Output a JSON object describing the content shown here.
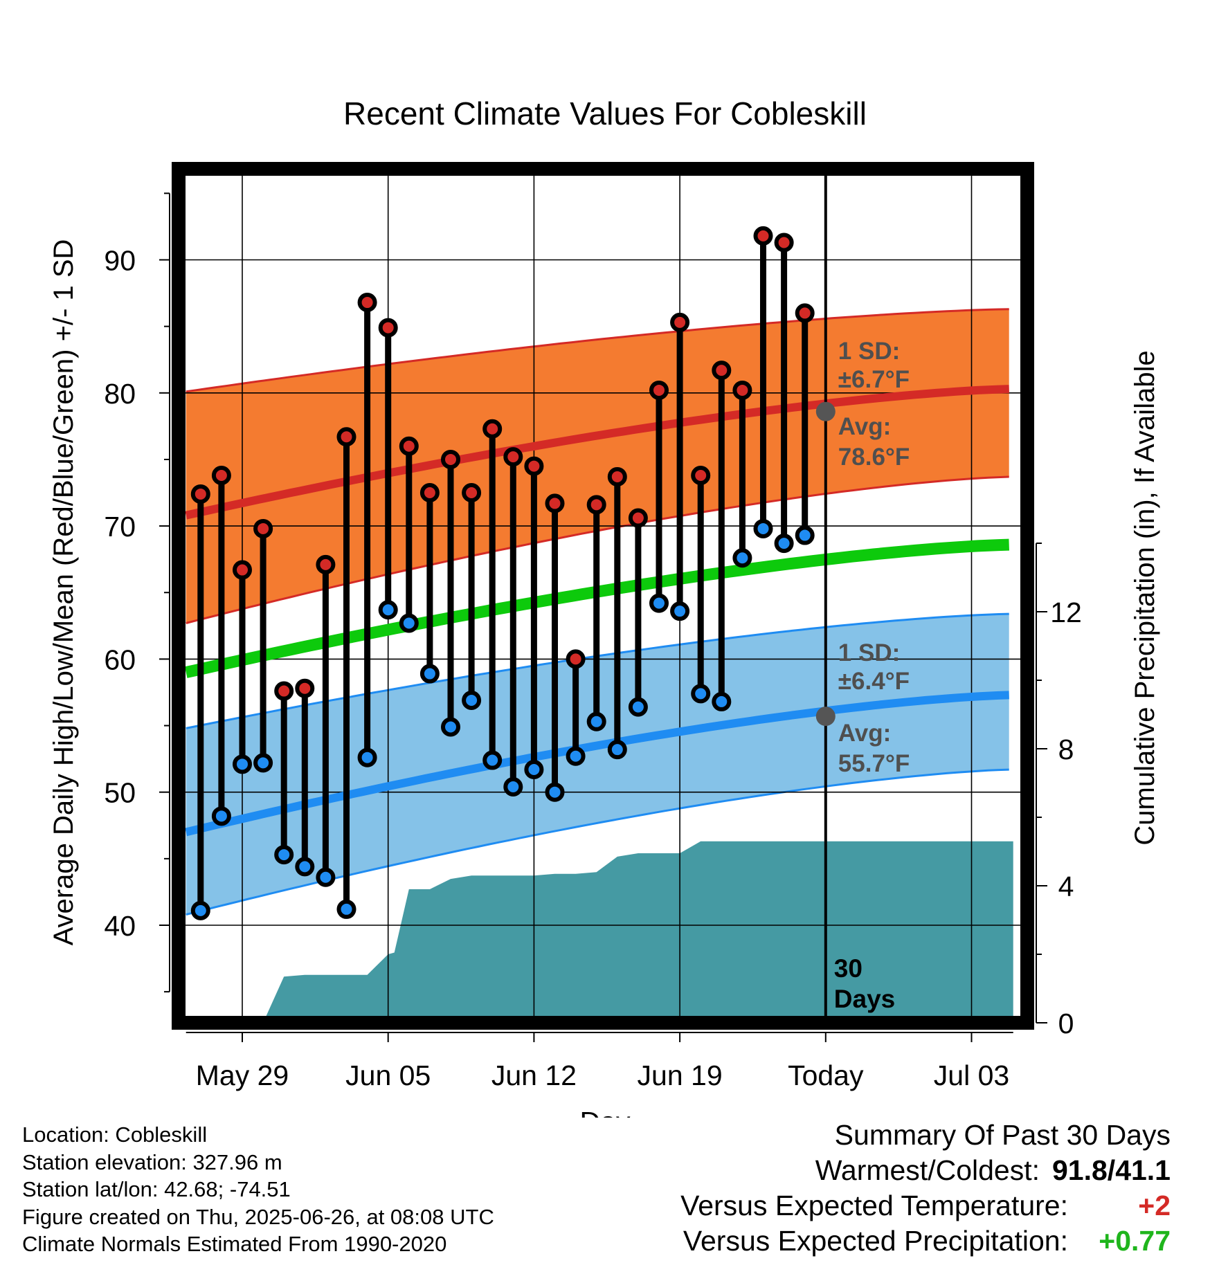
{
  "chart_data": {
    "type": "line",
    "title": "Recent Climate Values For Cobleskill",
    "xlabel": "Day",
    "ylabel_left": "Average Daily High/Low/Mean (Red/Blue/Green) +/- 1 SD",
    "ylabel_right": "Cumulative Precipitation (in), If Available",
    "x_ticks": [
      {
        "day": 0,
        "label": "May 29"
      },
      {
        "day": 7,
        "label": "Jun 05"
      },
      {
        "day": 14,
        "label": "Jun 12"
      },
      {
        "day": 21,
        "label": "Jun 19"
      },
      {
        "day": 28,
        "label": "Today"
      },
      {
        "day": 35,
        "label": "Jul 03"
      }
    ],
    "xlim": [
      -3.3,
      37.3
    ],
    "ylim": [
      33.7,
      97
    ],
    "y_ticks": [
      40,
      50,
      60,
      70,
      80,
      90
    ],
    "y2lim": [
      -0.25,
      0
    ],
    "y2_ticks": [
      0,
      4,
      8,
      12
    ],
    "grid": true,
    "today_day": 28,
    "observed_days": [
      -2,
      -1,
      0,
      1,
      2,
      3,
      4,
      5,
      6,
      7,
      8,
      9,
      10,
      11,
      12,
      13,
      14,
      15,
      16,
      17,
      18,
      19,
      20,
      21,
      22,
      23,
      24,
      25,
      26,
      27
    ],
    "observed_high": [
      72.4,
      73.8,
      66.7,
      69.8,
      57.6,
      57.8,
      67.1,
      76.7,
      86.8,
      84.9,
      76.0,
      72.5,
      75.0,
      72.5,
      77.3,
      75.2,
      74.5,
      71.7,
      60.0,
      71.6,
      73.7,
      70.6,
      80.2,
      85.3,
      73.8,
      81.7,
      80.2,
      91.8,
      91.3,
      86.0
    ],
    "observed_low": [
      41.1,
      48.2,
      52.1,
      52.2,
      45.3,
      44.4,
      43.6,
      41.2,
      52.6,
      63.7,
      62.7,
      58.9,
      54.9,
      56.9,
      52.4,
      50.4,
      51.7,
      50.0,
      52.7,
      55.3,
      53.2,
      56.4,
      64.2,
      63.6,
      57.4,
      56.8,
      67.6,
      69.8,
      68.7,
      69.3
    ],
    "normal_days": [
      -2.7,
      37
    ],
    "normal_high": [
      70.8,
      80.3
    ],
    "normal_high_sd_upper": [
      80.1,
      86.3
    ],
    "normal_high_sd_lower": [
      62.7,
      73.7
    ],
    "normal_low": [
      47.0,
      57.3
    ],
    "normal_low_sd_upper": [
      54.8,
      63.4
    ],
    "normal_low_sd_lower": [
      40.8,
      51.7
    ],
    "normal_mean": [
      59.0,
      68.6
    ],
    "precip_days": [
      -2.7,
      1,
      2,
      3,
      4,
      5,
      6,
      7,
      7.3,
      8,
      9,
      10,
      11,
      12,
      13,
      14,
      15,
      16,
      17,
      18,
      19,
      20,
      21,
      22,
      23,
      24,
      25,
      26,
      27,
      28,
      37
    ],
    "precip_cumulative": [
      0,
      0,
      1.35,
      1.4,
      1.4,
      1.4,
      1.4,
      2.0,
      2.05,
      3.9,
      3.9,
      4.2,
      4.3,
      4.3,
      4.3,
      4.3,
      4.35,
      4.35,
      4.4,
      4.85,
      4.95,
      4.95,
      4.95,
      5.3,
      5.3,
      5.3,
      5.3,
      5.3,
      5.3,
      5.3,
      5.3
    ],
    "precip_start_day": 0.7,
    "today_avg_high": 78.6,
    "today_avg_low": 55.7,
    "annotations": {
      "high_sd": [
        "1 SD:",
        "±6.7°F"
      ],
      "high_avg": [
        "Avg:",
        "78.6°F"
      ],
      "low_sd": [
        "1 SD:",
        "±6.4°F"
      ],
      "low_avg": [
        "Avg:",
        "55.7°F"
      ],
      "days": [
        "30",
        "Days"
      ]
    },
    "colors": {
      "high_band": "#f47b30",
      "high_line": "#d42a26",
      "low_band": "#85c2e8",
      "low_line": "#1f8cf2",
      "mean_line": "#0dca0c",
      "precip_fill": "#459aa3",
      "high_marker": "#d42a26",
      "low_marker": "#1f8cf2",
      "annotation_text": "#4f4f4f",
      "today_marker": "#555555"
    }
  },
  "info": {
    "location": "Location: Cobleskill",
    "elevation": "Station elevation: 327.96 m",
    "latlon": "Station lat/lon: 42.68; -74.51",
    "created": "Figure created on Thu, 2025-06-26, at 08:08 UTC",
    "normals": "Climate Normals Estimated From 1990-2020"
  },
  "summary": {
    "title": "Summary Of Past 30 Days",
    "warm_cold_label": "Warmest/Coldest:",
    "warm_cold_value": "91.8/41.1",
    "temp_label": "Versus Expected Temperature:",
    "temp_value": "+2",
    "temp_color": "#d42a26",
    "precip_label": "Versus Expected Precipitation:",
    "precip_value": "+0.77",
    "precip_color": "#1fb51c"
  }
}
